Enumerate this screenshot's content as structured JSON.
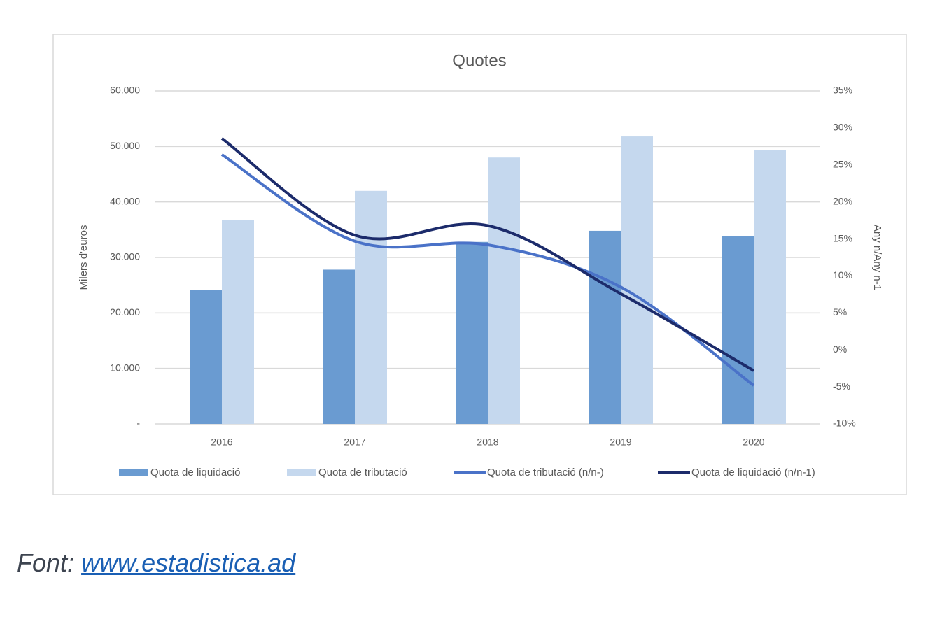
{
  "chart_data": {
    "type": "bar-line",
    "title": "Quotes",
    "y_label": "Milers d'euros",
    "y2_label": "Any n/Any n-1",
    "categories": [
      "2016",
      "2017",
      "2018",
      "2019",
      "2020"
    ],
    "series": [
      {
        "name": "Quota de liquidació",
        "color": "#6a9bd1",
        "type": "bar",
        "values": [
          24100,
          27800,
          32800,
          34800,
          33800
        ]
      },
      {
        "name": "Quota de tributació",
        "color": "#c5d8ee",
        "type": "bar",
        "values": [
          36700,
          42000,
          48000,
          51800,
          49300
        ]
      },
      {
        "name": "Quota de tributació (n/n-)",
        "color": "#4a72c8",
        "type": "line",
        "axis": "y2",
        "values": [
          26.4,
          14.7,
          14.2,
          8.5,
          -4.8
        ]
      },
      {
        "name": "Quota de liquidació (n/n-1)",
        "color": "#1c2b6b",
        "type": "line",
        "axis": "y2",
        "values": [
          28.6,
          15.5,
          16.8,
          7.6,
          -2.8
        ]
      }
    ],
    "ylim": [
      0,
      60000
    ],
    "yticks": [
      {
        "value": 0,
        "label": "-"
      },
      {
        "value": 10000,
        "label": "10.000"
      },
      {
        "value": 20000,
        "label": "20.000"
      },
      {
        "value": 30000,
        "label": "30.000"
      },
      {
        "value": 40000,
        "label": "40.000"
      },
      {
        "value": 50000,
        "label": "50.000"
      },
      {
        "value": 60000,
        "label": "60.000"
      }
    ],
    "y2lim": [
      -10,
      35
    ],
    "y2ticks": [
      {
        "value": -10,
        "label": "-10%"
      },
      {
        "value": -5,
        "label": "-5%"
      },
      {
        "value": 0,
        "label": "0%"
      },
      {
        "value": 5,
        "label": "5%"
      },
      {
        "value": 10,
        "label": "10%"
      },
      {
        "value": 15,
        "label": "15%"
      },
      {
        "value": 20,
        "label": "20%"
      },
      {
        "value": 25,
        "label": "25%"
      },
      {
        "value": 30,
        "label": "30%"
      },
      {
        "value": 35,
        "label": "35%"
      }
    ],
    "grid": true,
    "legend": "bottom"
  },
  "caption": {
    "prefix": "Font:",
    "link": "www.estadistica.ad"
  }
}
